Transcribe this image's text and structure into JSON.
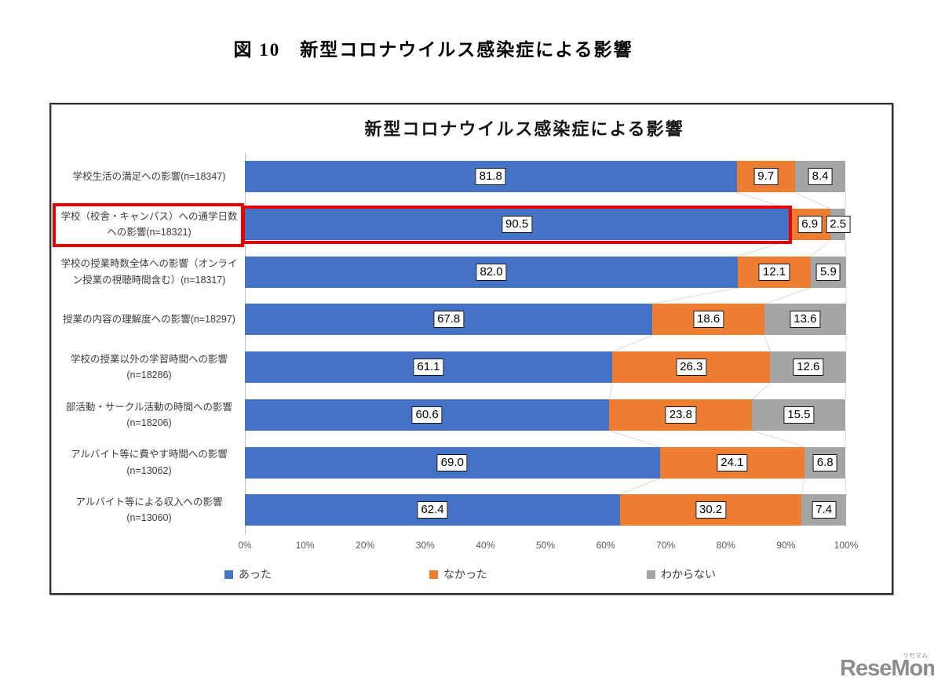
{
  "page": {
    "figure_caption": "図 10　新型コロナウイルス感染症による影響"
  },
  "watermark": {
    "text": "ReseMom.",
    "ruby": "リセマム"
  },
  "chart_data": {
    "type": "bar",
    "orientation": "horizontal",
    "stacked": true,
    "title": "新型コロナウイルス感染症による影響",
    "unit": "%",
    "xlim": [
      0,
      100
    ],
    "x_ticks": [
      "0%",
      "10%",
      "20%",
      "30%",
      "40%",
      "50%",
      "60%",
      "70%",
      "80%",
      "90%",
      "100%"
    ],
    "grid": false,
    "legend_position": "bottom",
    "categories": [
      {
        "label_lines": [
          "学校生活の満足への影響(n=18347)"
        ],
        "n": 18347
      },
      {
        "label_lines": [
          "学校（校舎・キャンパス）への通学日数",
          "への影響(n=18321)"
        ],
        "n": 18321,
        "highlighted": true
      },
      {
        "label_lines": [
          "学校の授業時数全体への影響（オンライ",
          "ン授業の視聴時間含む）(n=18317)"
        ],
        "n": 18317
      },
      {
        "label_lines": [
          "授業の内容の理解度への影響(n=18297)"
        ],
        "n": 18297
      },
      {
        "label_lines": [
          "学校の授業以外の学習時間への影響",
          "(n=18286)"
        ],
        "n": 18286
      },
      {
        "label_lines": [
          "部活動・サークル活動の時間への影響",
          "(n=18206)"
        ],
        "n": 18206
      },
      {
        "label_lines": [
          "アルバイト等に費やす時間への影響",
          "(n=13062)"
        ],
        "n": 13062
      },
      {
        "label_lines": [
          "アルバイト等による収入への影響",
          "(n=13060)"
        ],
        "n": 13060
      }
    ],
    "series": [
      {
        "name": "あった",
        "color": "#4472C4",
        "values": [
          81.8,
          90.5,
          82.0,
          67.8,
          61.1,
          60.6,
          69.0,
          62.4
        ]
      },
      {
        "name": "なかった",
        "color": "#ED7D31",
        "values": [
          9.7,
          6.9,
          12.1,
          18.6,
          26.3,
          23.8,
          24.1,
          30.2
        ]
      },
      {
        "name": "わからない",
        "color": "#A5A5A5",
        "values": [
          8.4,
          2.5,
          5.9,
          13.6,
          12.6,
          15.5,
          6.8,
          7.4
        ]
      }
    ],
    "series_connector_line_color": "#d9d9d9",
    "highlighted_row_index": 1,
    "highlight_color": "#E60000"
  }
}
